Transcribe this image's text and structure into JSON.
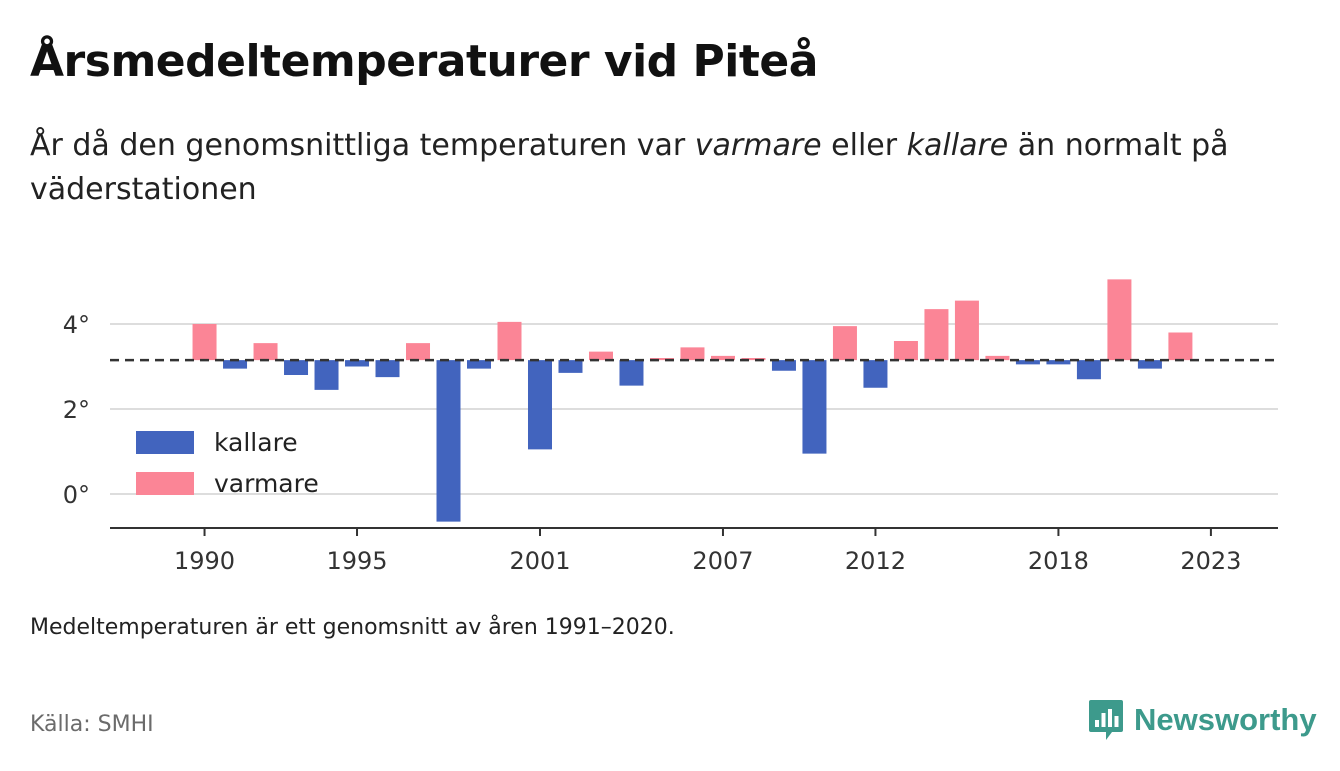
{
  "header": {
    "title": "Årsmedeltemperaturer vid Piteå",
    "subtitle_prefix": "År då den genomsnittliga temperaturen var ",
    "subtitle_warm": "varmare",
    "subtitle_middle": " eller ",
    "subtitle_cold": "kallare",
    "subtitle_suffix": " än normalt på väderstationen"
  },
  "footer": {
    "note": "Medeltemperaturen är ett genomsnitt av åren 1991–2020.",
    "source": "Källa: SMHI",
    "brand": "Newsworthy"
  },
  "colors": {
    "warmer": "#fb8596",
    "colder": "#4264be",
    "baseline": "#333333",
    "grid": "#dddddd",
    "brand": "#3d9a8c"
  },
  "chart_data": {
    "type": "bar",
    "baseline": 3.15,
    "ylim": [
      -0.75,
      5.3
    ],
    "y_ticks": [
      0,
      2,
      4
    ],
    "y_tick_labels": [
      "0°",
      "2°",
      "4°"
    ],
    "x_ticks": [
      1990,
      1995,
      2001,
      2007,
      2012,
      2018,
      2023
    ],
    "xlim": [
      1986.9,
      2025.2
    ],
    "grid": true,
    "legend": {
      "placement": "left",
      "items": [
        {
          "key": "colder",
          "label": "kallare"
        },
        {
          "key": "warmer",
          "label": "varmare"
        }
      ]
    },
    "x": [
      1990,
      1991,
      1992,
      1993,
      1994,
      1995,
      1996,
      1997,
      1998,
      1999,
      2000,
      2001,
      2002,
      2003,
      2004,
      2005,
      2006,
      2007,
      2008,
      2009,
      2010,
      2011,
      2012,
      2013,
      2014,
      2015,
      2016,
      2017,
      2018,
      2019,
      2020,
      2021,
      2022
    ],
    "values": [
      4.0,
      2.95,
      3.55,
      2.8,
      2.45,
      3.0,
      2.75,
      3.55,
      -0.65,
      2.95,
      4.05,
      1.05,
      2.85,
      3.35,
      2.55,
      3.2,
      3.45,
      3.25,
      3.2,
      2.9,
      0.95,
      3.95,
      2.5,
      3.6,
      4.35,
      4.55,
      3.25,
      3.05,
      3.05,
      2.7,
      5.05,
      2.95,
      3.8
    ]
  }
}
